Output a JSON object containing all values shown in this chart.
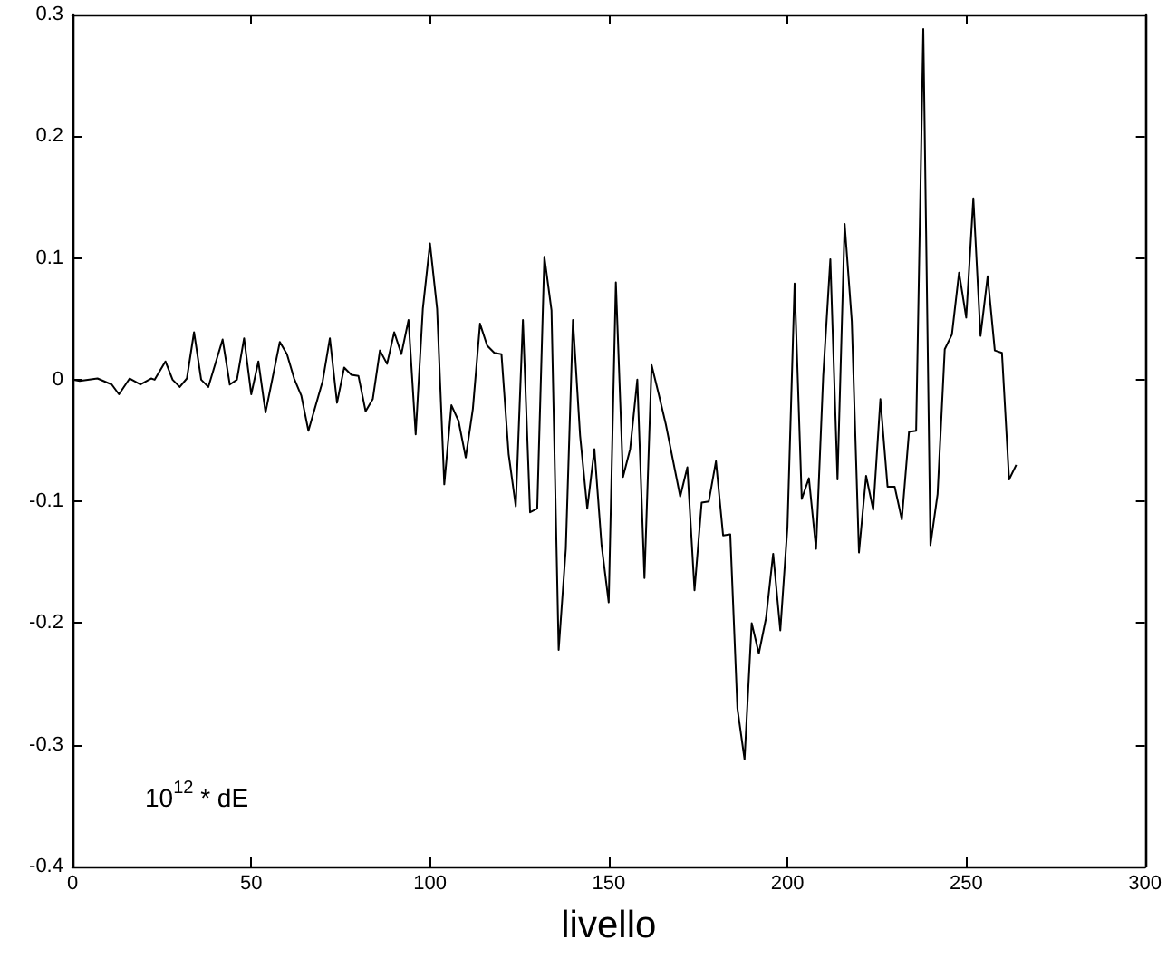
{
  "chart_data": {
    "type": "line",
    "xlabel": "livello",
    "annotations": [
      "10$^{12}$ * dE"
    ],
    "x": [
      0,
      2,
      7,
      11,
      13,
      16,
      19,
      22,
      23,
      26,
      28,
      30,
      32,
      34,
      36,
      38,
      42,
      44,
      46,
      48,
      50,
      52,
      54,
      58,
      60,
      62,
      64,
      66,
      70,
      72,
      74,
      76,
      78,
      80,
      82,
      84,
      86,
      88,
      90,
      92,
      94,
      96,
      98,
      100,
      102,
      104,
      106,
      108,
      110,
      112,
      114,
      116,
      118,
      120,
      122,
      124,
      126,
      128,
      130,
      132,
      134,
      136,
      138,
      140,
      142,
      144,
      146,
      148,
      150,
      152,
      154,
      156,
      158,
      160,
      162,
      164,
      166,
      170,
      172,
      174,
      176,
      178,
      180,
      182,
      184,
      186,
      188,
      190,
      192,
      194,
      196,
      198,
      200,
      202,
      204,
      206,
      208,
      210,
      212,
      214,
      216,
      218,
      220,
      222,
      224,
      226,
      228,
      230,
      232,
      234,
      236,
      238,
      240,
      242,
      244,
      246,
      248,
      250,
      252,
      254,
      256,
      258,
      260,
      262,
      264
    ],
    "series": [
      {
        "color": "#000000",
        "values": [
          0,
          -0.001,
          0.001,
          -0.004,
          -0.012,
          0.001,
          -0.004,
          0.001,
          0.0,
          0.015,
          0.0,
          -0.006,
          0.001,
          0.039,
          0.0,
          -0.006,
          0.033,
          -0.004,
          0.0,
          0.034,
          -0.012,
          0.015,
          -0.027,
          0.031,
          0.021,
          0.001,
          -0.013,
          -0.042,
          -0.001,
          0.034,
          -0.019,
          0.01,
          0.004,
          0.003,
          -0.026,
          -0.016,
          0.024,
          0.013,
          0.039,
          0.021,
          0.049,
          -0.045,
          0.058,
          0.112,
          0.058,
          -0.086,
          -0.021,
          -0.034,
          -0.064,
          -0.024,
          0.046,
          0.028,
          0.022,
          0.021,
          -0.061,
          -0.104,
          0.049,
          -0.109,
          -0.106,
          0.101,
          0.057,
          -0.222,
          -0.139,
          0.049,
          -0.046,
          -0.106,
          -0.057,
          -0.136,
          -0.183,
          0.08,
          -0.08,
          -0.057,
          0.0,
          -0.163,
          0.012,
          -0.012,
          -0.037,
          -0.096,
          -0.072,
          -0.173,
          -0.101,
          -0.1,
          -0.067,
          -0.128,
          -0.127,
          -0.27,
          -0.312,
          -0.2,
          -0.225,
          -0.196,
          -0.143,
          -0.206,
          -0.121,
          0.079,
          -0.098,
          -0.081,
          -0.139,
          0.003,
          0.099,
          -0.082,
          0.128,
          0.048,
          -0.142,
          -0.079,
          -0.107,
          -0.016,
          -0.088,
          -0.088,
          -0.115,
          -0.043,
          -0.042,
          0.288,
          -0.136,
          -0.094,
          0.025,
          0.037,
          0.088,
          0.051,
          0.149,
          0.036,
          0.085,
          0.024,
          0.022,
          -0.082,
          -0.07
        ]
      }
    ],
    "xlim": [
      0,
      300
    ],
    "xticks": [
      0,
      50,
      100,
      150,
      200,
      250,
      300
    ],
    "ylim": [
      -0.4,
      0.3
    ],
    "yticks": [
      -0.4,
      -0.3,
      -0.2,
      -0.1,
      0,
      0.1,
      0.2,
      0.3
    ],
    "grid": false,
    "marker": "none",
    "line_style": "solid"
  }
}
